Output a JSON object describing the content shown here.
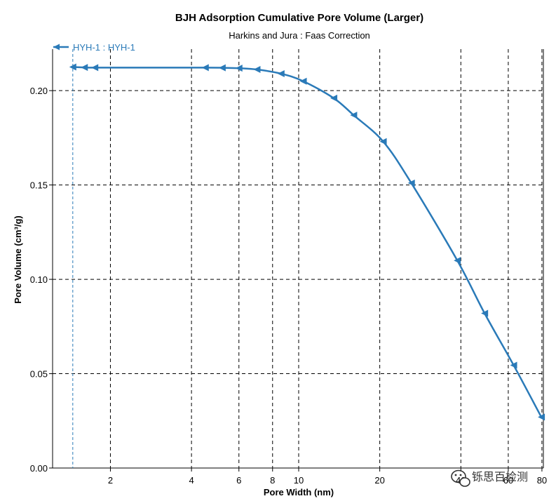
{
  "chart_data": {
    "type": "line",
    "title": "BJH Adsorption Cumulative Pore Volume (Larger)",
    "subtitle": "Harkins and Jura : Faas Correction",
    "xlabel": "Pore Width (nm)",
    "ylabel": "Pore Volume (cm³/g)",
    "x_scale": "log",
    "xlim": [
      1.22,
      81
    ],
    "ylim": [
      0,
      0.222
    ],
    "x_ticks": [
      2,
      4,
      6,
      8,
      10,
      20,
      40,
      60,
      80
    ],
    "x_tick_labels": [
      "2",
      "4",
      "6",
      "8",
      "10",
      "20",
      "40",
      "60",
      "80"
    ],
    "y_ticks": [
      0.0,
      0.05,
      0.1,
      0.15,
      0.2
    ],
    "y_tick_labels": [
      "0.00",
      "0.05",
      "0.10",
      "0.15",
      "0.20"
    ],
    "grid": true,
    "legend_position": "top-left",
    "series": [
      {
        "name": "HYH-1 : HYH-1",
        "color": "#2a7ab8",
        "marker": "left-triangle",
        "x": [
          1.45,
          1.6,
          1.75,
          4.5,
          5.2,
          6.0,
          7.0,
          8.6,
          10.4,
          13.5,
          16.0,
          20.6,
          26.2,
          38.8,
          49.0,
          62.8,
          79.6
        ],
        "y": [
          0.2125,
          0.2123,
          0.2122,
          0.2122,
          0.2121,
          0.2119,
          0.2112,
          0.209,
          0.205,
          0.196,
          0.187,
          0.173,
          0.151,
          0.11,
          0.082,
          0.0545,
          0.027
        ]
      }
    ]
  },
  "watermark": {
    "text": "铄思百检测",
    "icon": "wechat-icon"
  },
  "colors": {
    "series": "#2a7ab8",
    "grid": "#000000",
    "axis": "#000000"
  }
}
